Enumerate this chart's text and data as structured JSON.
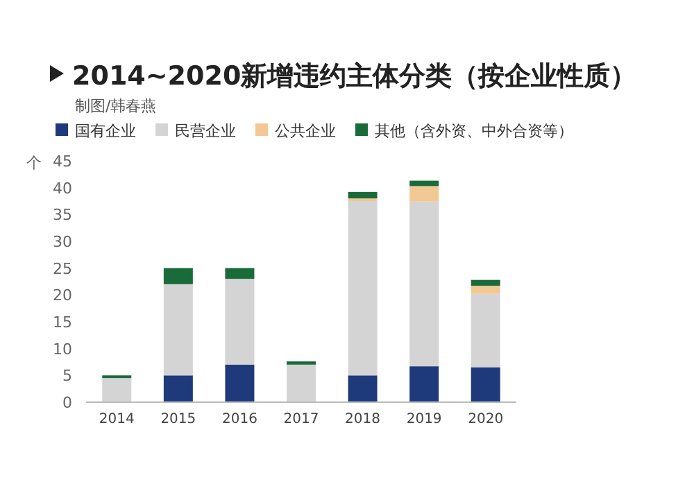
{
  "chart_data": {
    "type": "bar",
    "stacked": true,
    "title": "2014~2020新增违约主体分类（按企业性质）",
    "subtitle": "制图/韩春燕",
    "ylabel": "个",
    "legend": "top",
    "categories": [
      "2014",
      "2015",
      "2016",
      "2017",
      "2018",
      "2019",
      "2020"
    ],
    "series": [
      {
        "name": "国有企业",
        "color": "#1f3a7a",
        "values": [
          0,
          5,
          7,
          0,
          5,
          6.7,
          6.5
        ]
      },
      {
        "name": "民营企业",
        "color": "#d4d4d4",
        "values": [
          4.5,
          17,
          16,
          7,
          32.5,
          30.7,
          13.7
        ]
      },
      {
        "name": "公共企业",
        "color": "#f2c894",
        "values": [
          0,
          0,
          0,
          0,
          0.5,
          2.9,
          1.5
        ]
      },
      {
        "name": "其他（含外资、中外合资等）",
        "color": "#1a6b3a",
        "values": [
          0.5,
          3,
          2,
          0.6,
          1.2,
          1,
          1.1
        ]
      }
    ],
    "ylim": [
      0,
      45
    ],
    "yticks": [
      0,
      5,
      10,
      15,
      20,
      25,
      30,
      35,
      40,
      45
    ]
  }
}
